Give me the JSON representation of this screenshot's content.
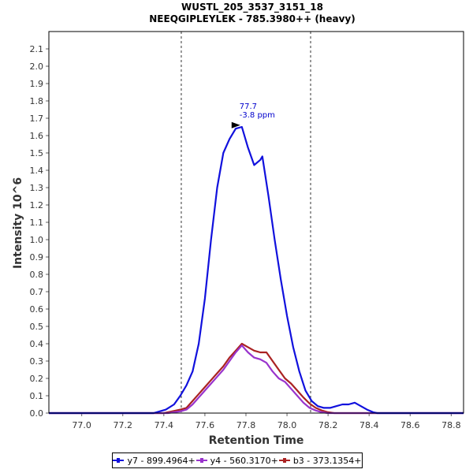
{
  "chart_data": {
    "type": "line",
    "title": "WUSTL_205_3537_3151_18",
    "subtitle": "NEEQGIPLEYLEK - 785.3980++ (heavy)",
    "xlabel": "Retention Time",
    "ylabel": "Intensity 10^6",
    "xlim": [
      76.84,
      78.86
    ],
    "ylim": [
      0,
      2.2
    ],
    "x_ticks": [
      "77.0",
      "77.2",
      "77.4",
      "77.6",
      "77.8",
      "78.0",
      "78.2",
      "78.4",
      "78.6",
      "78.8"
    ],
    "y_ticks": [
      "0.0",
      "0.1",
      "0.2",
      "0.3",
      "0.4",
      "0.5",
      "0.6",
      "0.7",
      "0.8",
      "0.9",
      "1.0",
      "1.1",
      "1.2",
      "1.3",
      "1.4",
      "1.5",
      "1.6",
      "1.7",
      "1.8",
      "1.9",
      "2.0",
      "2.1"
    ],
    "boundaries": [
      77.485,
      78.115
    ],
    "legend_position": "bottom",
    "annotation": {
      "x": 77.78,
      "y": 1.66,
      "line1": "77.7",
      "line2": "-3.8 ppm"
    },
    "series": [
      {
        "name": "y7 - 899.4964+",
        "color": "#1111dd",
        "x": [
          76.84,
          77.35,
          77.41,
          77.45,
          77.48,
          77.51,
          77.54,
          77.57,
          77.6,
          77.63,
          77.66,
          77.69,
          77.72,
          77.75,
          77.78,
          77.81,
          77.84,
          77.87,
          77.88,
          77.91,
          77.94,
          77.97,
          78.0,
          78.03,
          78.06,
          78.09,
          78.12,
          78.15,
          78.18,
          78.21,
          78.24,
          78.27,
          78.3,
          78.33,
          78.36,
          78.39,
          78.42,
          78.44,
          78.86
        ],
        "y": [
          0.0,
          0.0,
          0.02,
          0.05,
          0.1,
          0.16,
          0.24,
          0.4,
          0.66,
          1.0,
          1.3,
          1.5,
          1.58,
          1.64,
          1.65,
          1.53,
          1.43,
          1.46,
          1.48,
          1.25,
          1.0,
          0.77,
          0.56,
          0.38,
          0.24,
          0.13,
          0.07,
          0.04,
          0.03,
          0.03,
          0.04,
          0.05,
          0.05,
          0.06,
          0.04,
          0.02,
          0.005,
          0.0,
          0.0
        ]
      },
      {
        "name": "y4 - 560.3170+",
        "color": "#9933cc",
        "x": [
          76.84,
          77.42,
          77.45,
          77.48,
          77.51,
          77.54,
          77.57,
          77.6,
          77.63,
          77.66,
          77.69,
          77.72,
          77.75,
          77.78,
          77.81,
          77.84,
          77.87,
          77.9,
          77.93,
          77.96,
          77.99,
          78.02,
          78.05,
          78.08,
          78.11,
          78.14,
          78.17,
          78.2,
          78.23,
          78.3,
          78.86
        ],
        "y": [
          0.0,
          0.0,
          0.005,
          0.01,
          0.02,
          0.05,
          0.09,
          0.13,
          0.17,
          0.21,
          0.25,
          0.3,
          0.35,
          0.39,
          0.35,
          0.32,
          0.31,
          0.29,
          0.24,
          0.2,
          0.18,
          0.14,
          0.1,
          0.06,
          0.03,
          0.015,
          0.005,
          0.0,
          0.0,
          0.0,
          0.0
        ]
      },
      {
        "name": "b3 - 373.1354+",
        "color": "#aa2222",
        "x": [
          76.84,
          77.4,
          77.44,
          77.48,
          77.51,
          77.54,
          77.57,
          77.6,
          77.63,
          77.66,
          77.69,
          77.72,
          77.75,
          77.78,
          77.81,
          77.84,
          77.87,
          77.9,
          77.93,
          77.96,
          77.99,
          78.02,
          78.05,
          78.08,
          78.11,
          78.14,
          78.17,
          78.2,
          78.23,
          78.86
        ],
        "y": [
          0.0,
          0.0,
          0.01,
          0.02,
          0.03,
          0.07,
          0.11,
          0.15,
          0.19,
          0.23,
          0.27,
          0.32,
          0.36,
          0.4,
          0.38,
          0.36,
          0.35,
          0.35,
          0.3,
          0.25,
          0.2,
          0.17,
          0.13,
          0.09,
          0.055,
          0.03,
          0.015,
          0.005,
          0.0,
          0.0
        ]
      }
    ]
  }
}
